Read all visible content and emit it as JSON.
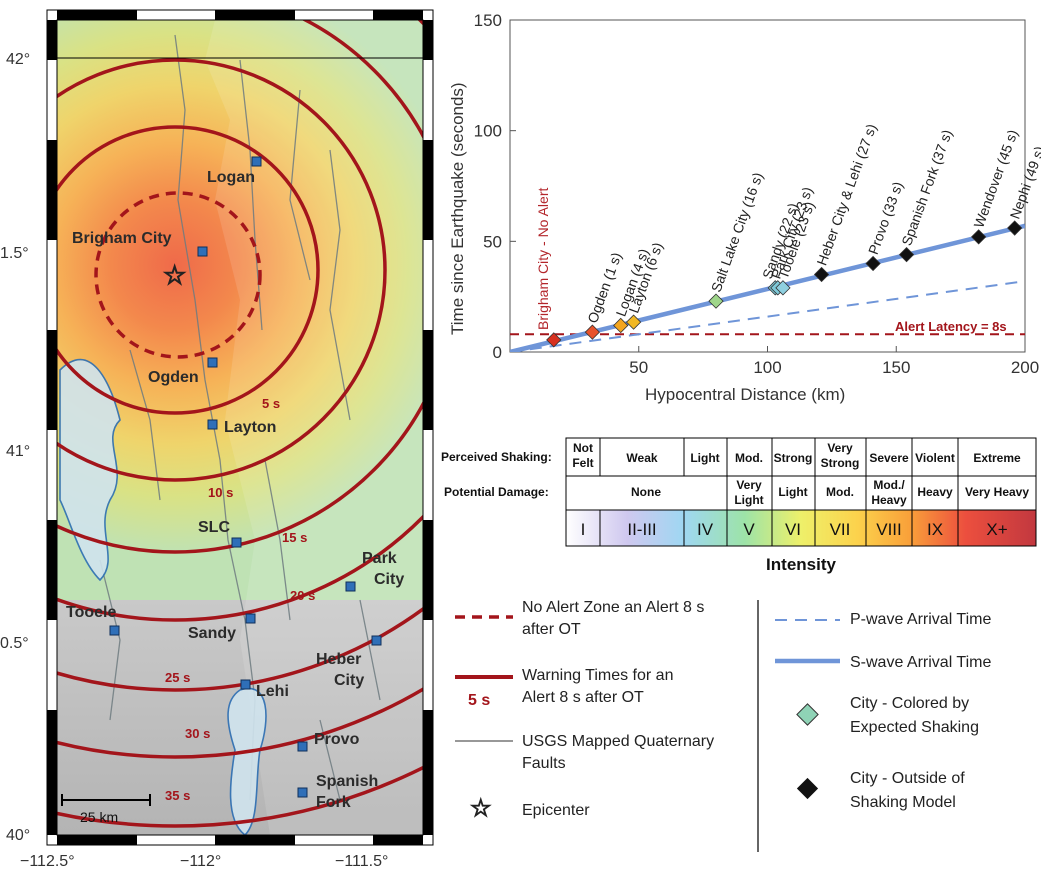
{
  "map": {
    "lat_labels": [
      "42°",
      "1.5°",
      "41°",
      "0.5°",
      "40°"
    ],
    "lon_labels": [
      "−112.5°",
      "−112°",
      "−111.5°"
    ],
    "cities": [
      "Logan",
      "Brigham City",
      "Ogden",
      "Layton",
      "SLC",
      "Park City",
      "Tooele",
      "Sandy",
      "Heber City",
      "Lehi",
      "Provo",
      "Spanish Fork"
    ],
    "ring_labels": [
      "5 s",
      "10 s",
      "15 s",
      "20 s",
      "25 s",
      "30 s",
      "35 s"
    ],
    "scale_bar": "25 km"
  },
  "chart_data": {
    "type": "line",
    "xlabel": "Hypocentral Distance (km)",
    "ylabel": "Time since Earthquake (seconds)",
    "xlim": [
      0,
      200
    ],
    "ylim": [
      0,
      150
    ],
    "x_ticks": [
      "50",
      "100",
      "150",
      "200"
    ],
    "y_ticks": [
      "0",
      "50",
      "100",
      "150"
    ],
    "series": [
      {
        "name": "S-wave Arrival Time",
        "x": [
          0,
          200
        ],
        "y": [
          0,
          57
        ]
      },
      {
        "name": "P-wave Arrival Time",
        "x": [
          0,
          200
        ],
        "y": [
          0,
          32
        ]
      }
    ],
    "alert_latency": {
      "label": "Alert Latency = 8s",
      "y": 8
    },
    "no_alert_label": "Brigham City - No Alert",
    "points": [
      {
        "label": "Ogden (1 s)",
        "x": 32,
        "y": 9,
        "color": "#e8532b"
      },
      {
        "label": "Logan (4 s)",
        "x": 43,
        "y": 12,
        "color": "#f3a51f"
      },
      {
        "label": "Layton (6 s)",
        "x": 48,
        "y": 13.5,
        "color": "#f1b824"
      },
      {
        "label": "Salt Lake City (16 s)",
        "x": 80,
        "y": 23,
        "color": "#9fd68a"
      },
      {
        "label": "Sandy (22 s)",
        "x": 103,
        "y": 29,
        "color": "#7ec9d8"
      },
      {
        "label": "Park City (23 s)",
        "x": 104,
        "y": 29,
        "color": "#7ec9d8"
      },
      {
        "label": "Tooele (23 s)",
        "x": 106,
        "y": 29,
        "color": "#8fd0e0"
      },
      {
        "label": "Heber City & Lehi (27 s)",
        "x": 121,
        "y": 35,
        "color": "#111111"
      },
      {
        "label": "Provo (33 s)",
        "x": 141,
        "y": 40,
        "color": "#111111"
      },
      {
        "label": "Spanish Fork (37 s)",
        "x": 154,
        "y": 44,
        "color": "#111111"
      },
      {
        "label": "Wendover (45 s)",
        "x": 182,
        "y": 52,
        "color": "#111111"
      },
      {
        "label": "Nephi (49 s)",
        "x": 196,
        "y": 56,
        "color": "#111111"
      }
    ],
    "brigham_point": {
      "x": 17,
      "y": 5.5,
      "color": "#d7301f"
    }
  },
  "intensity_table": {
    "row1_label": "Perceived Shaking:",
    "row2_label": "Potential Damage:",
    "shaking": [
      "Not Felt",
      "Weak",
      "Light",
      "Mod.",
      "Strong",
      "Very Strong",
      "Severe",
      "Violent",
      "Extreme"
    ],
    "damage": [
      "None",
      "Very Light",
      "Light",
      "Mod.",
      "Mod./ Heavy",
      "Heavy",
      "Very Heavy"
    ],
    "levels": [
      "I",
      "II-III",
      "IV",
      "V",
      "VI",
      "VII",
      "VIII",
      "IX",
      "X+"
    ],
    "title": "Intensity"
  },
  "legend": {
    "no_alert_zone": "No Alert Zone an Alert 8 s after OT",
    "warning_times": "Warning Times for an Alert 8 s after OT",
    "warning_sample": "5 s",
    "faults": "USGS Mapped Quaternary Faults",
    "epicenter": "Epicenter",
    "p_wave": "P-wave Arrival Time",
    "s_wave": "S-wave Arrival Time",
    "city_colored": "City - Colored by Expected Shaking",
    "city_outside": "City - Outside of Shaking Model"
  }
}
